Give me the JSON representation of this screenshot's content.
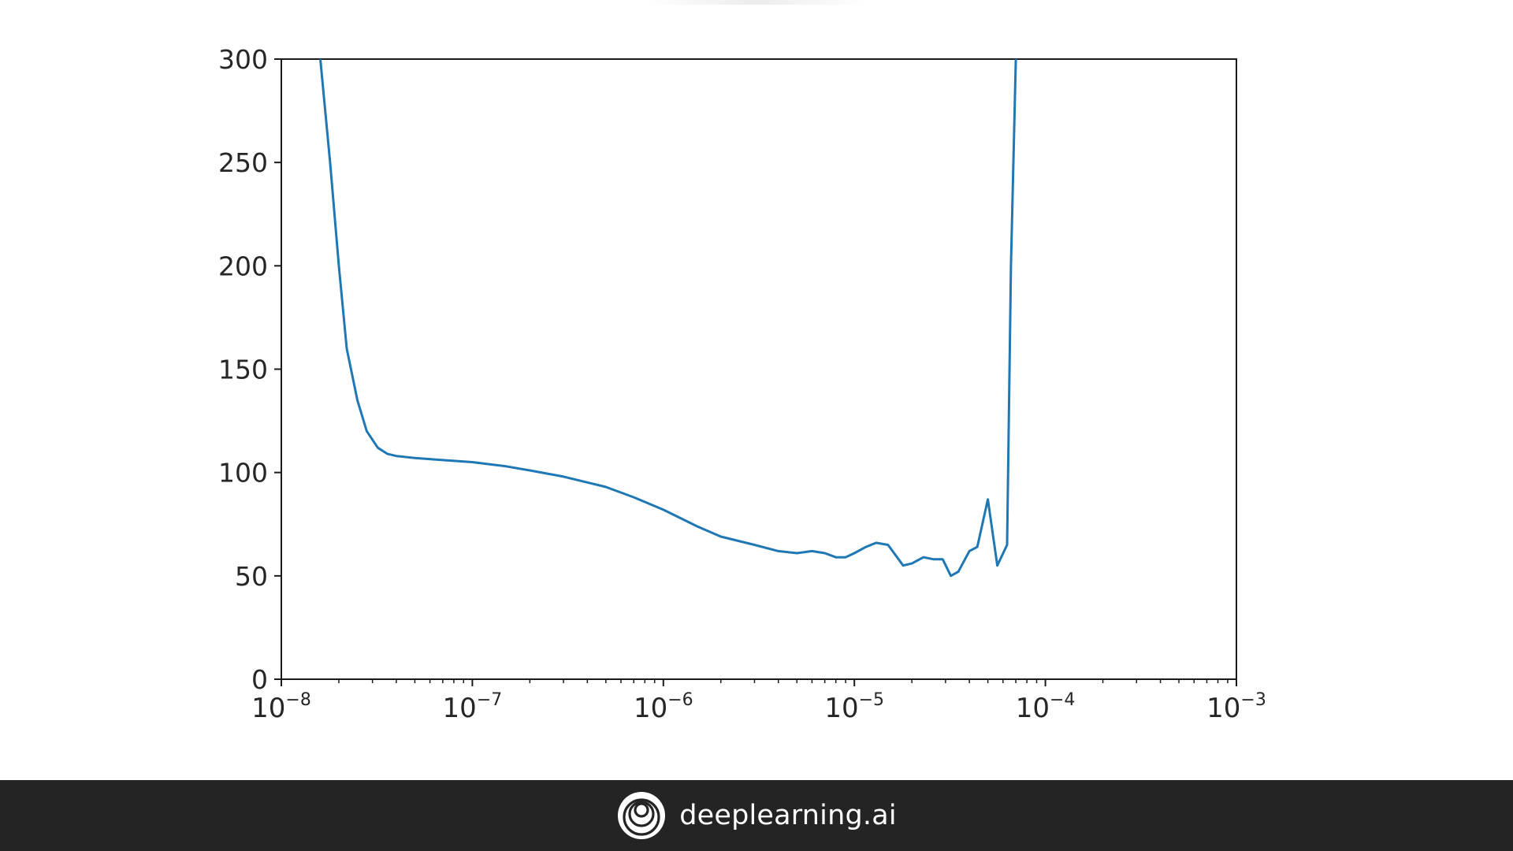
{
  "chart_data": {
    "type": "line",
    "title": "",
    "xlabel": "",
    "ylabel": "",
    "xscale": "log",
    "xlim": [
      1e-08,
      0.001
    ],
    "ylim": [
      0,
      300
    ],
    "grid": false,
    "legend": "none",
    "x_ticks": [
      {
        "value": 1e-08,
        "base": "10",
        "exp": "−8"
      },
      {
        "value": 1e-07,
        "base": "10",
        "exp": "−7"
      },
      {
        "value": 1e-06,
        "base": "10",
        "exp": "−6"
      },
      {
        "value": 1e-05,
        "base": "10",
        "exp": "−5"
      },
      {
        "value": 0.0001,
        "base": "10",
        "exp": "−4"
      },
      {
        "value": 0.001,
        "base": "10",
        "exp": "−3"
      }
    ],
    "y_ticks": [
      {
        "value": 0,
        "label": "0"
      },
      {
        "value": 50,
        "label": "50"
      },
      {
        "value": 100,
        "label": "100"
      },
      {
        "value": 150,
        "label": "150"
      },
      {
        "value": 200,
        "label": "200"
      },
      {
        "value": 250,
        "label": "250"
      },
      {
        "value": 300,
        "label": "300"
      }
    ],
    "series": [
      {
        "color": "#1f77b4",
        "x": [
          1.6e-08,
          1.8e-08,
          2e-08,
          2.2e-08,
          2.5e-08,
          2.8e-08,
          3.2e-08,
          3.6e-08,
          4e-08,
          5e-08,
          7e-08,
          1e-07,
          1.5e-07,
          2e-07,
          3e-07,
          5e-07,
          7e-07,
          1e-06,
          1.5e-06,
          2e-06,
          3e-06,
          4e-06,
          5e-06,
          6e-06,
          7e-06,
          8e-06,
          9e-06,
          1e-05,
          1.15e-05,
          1.3e-05,
          1.5e-05,
          1.8e-05,
          2e-05,
          2.3e-05,
          2.6e-05,
          2.9e-05,
          3.2e-05,
          3.5e-05,
          4e-05,
          4.4e-05,
          5e-05,
          5.6e-05,
          6.3e-05,
          6.6e-05,
          7e-05
        ],
        "y": [
          300,
          250,
          200,
          160,
          135,
          120,
          112,
          109,
          108,
          107,
          106,
          105,
          103,
          101,
          98,
          93,
          88,
          82,
          74,
          69,
          65,
          62,
          61,
          62,
          61,
          59,
          59,
          61,
          64,
          66,
          65,
          55,
          56,
          59,
          58,
          58,
          50,
          52,
          62,
          64,
          87,
          55,
          65,
          200,
          300
        ]
      }
    ]
  },
  "footer": {
    "brand_name": "deeplearning.ai",
    "logo_icon": "deeplearning-ai-logo-icon"
  }
}
